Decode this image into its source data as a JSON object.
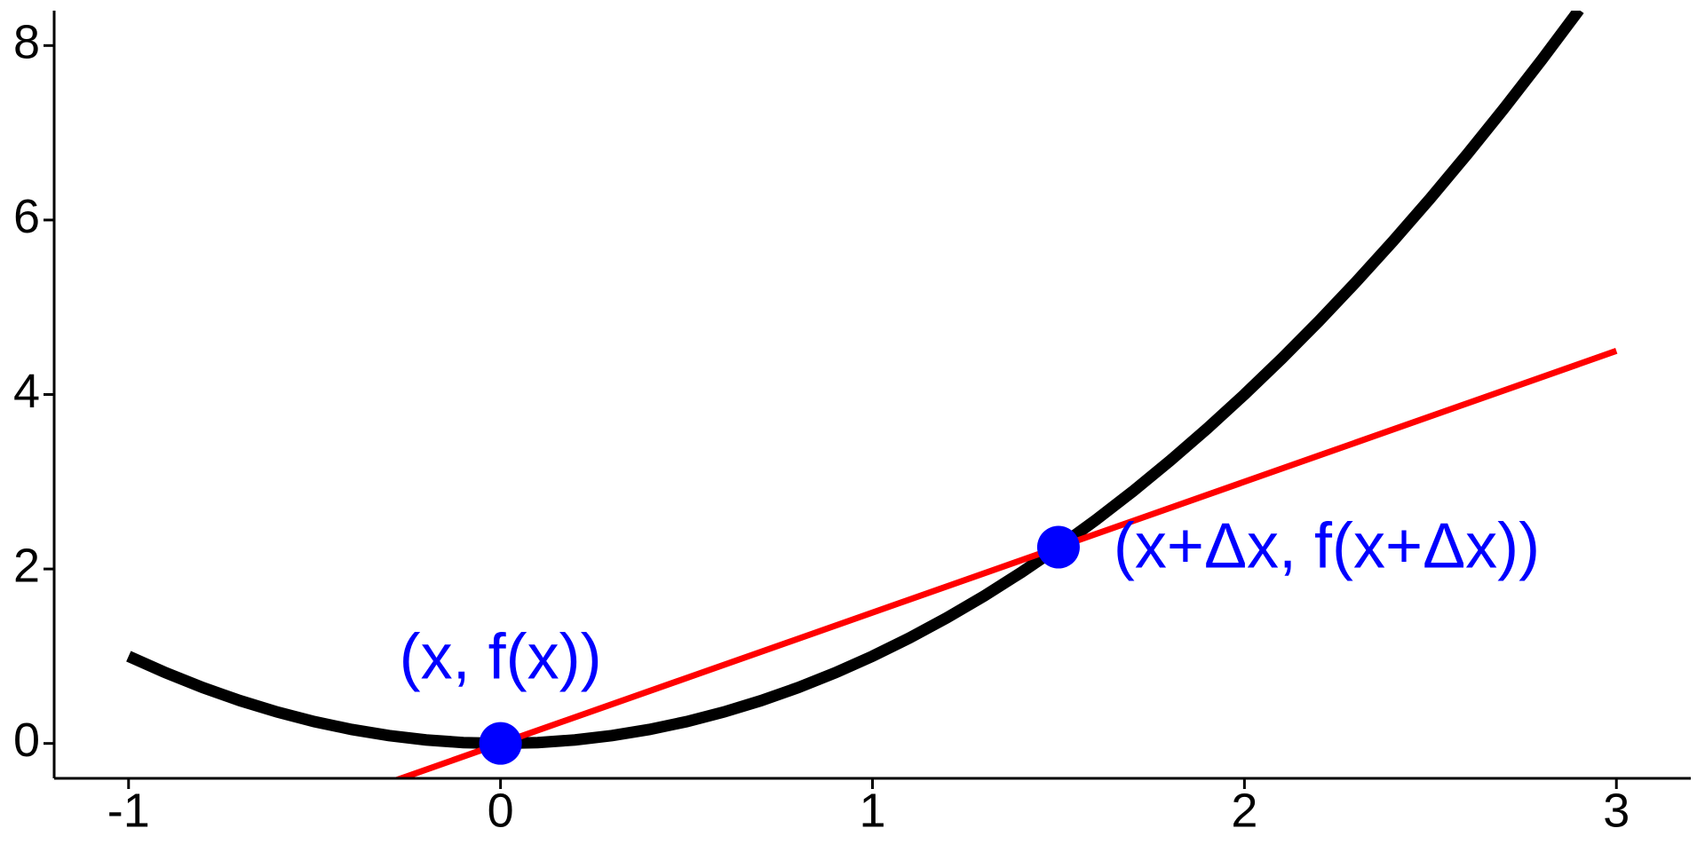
{
  "chart_data": {
    "type": "line",
    "xlim": [
      -1.2,
      3.2
    ],
    "ylim": [
      -0.4,
      8.4
    ],
    "xticks": [
      -1,
      0,
      1,
      2,
      3
    ],
    "yticks": [
      0,
      2,
      4,
      6,
      8
    ],
    "series": [
      {
        "color": "#000000",
        "x": [
          -1,
          -0.9,
          -0.8,
          -0.7,
          -0.6,
          -0.5,
          -0.4,
          -0.3,
          -0.2,
          -0.1,
          0,
          0.1,
          0.2,
          0.3,
          0.4,
          0.5,
          0.6,
          0.7,
          0.8,
          0.9,
          1,
          1.1,
          1.2,
          1.3,
          1.4,
          1.5,
          1.6,
          1.7,
          1.8,
          1.9,
          2,
          2.1,
          2.2,
          2.3,
          2.4,
          2.5,
          2.6,
          2.7,
          2.8,
          2.9
        ],
        "values": [
          1,
          0.81,
          0.64,
          0.49,
          0.36,
          0.25,
          0.16,
          0.09,
          0.04,
          0.01,
          0,
          0.01,
          0.04,
          0.09,
          0.16,
          0.25,
          0.36,
          0.49,
          0.64,
          0.81,
          1,
          1.21,
          1.44,
          1.69,
          1.96,
          2.25,
          2.56,
          2.89,
          3.24,
          3.61,
          4,
          4.41,
          4.84,
          5.29,
          5.76,
          6.25,
          6.76,
          7.29,
          7.84,
          8.41
        ]
      },
      {
        "color": "#ff0000",
        "x": [
          -0.3,
          3
        ],
        "values": [
          -0.45,
          4.5
        ]
      },
      {
        "color": "#0000ff",
        "type": "scatter",
        "x": [
          0,
          1.5
        ],
        "values": [
          0,
          2.25
        ]
      }
    ],
    "annotations": [
      "(x, f(x))",
      "(x+Δx, f(x+Δx))"
    ]
  }
}
